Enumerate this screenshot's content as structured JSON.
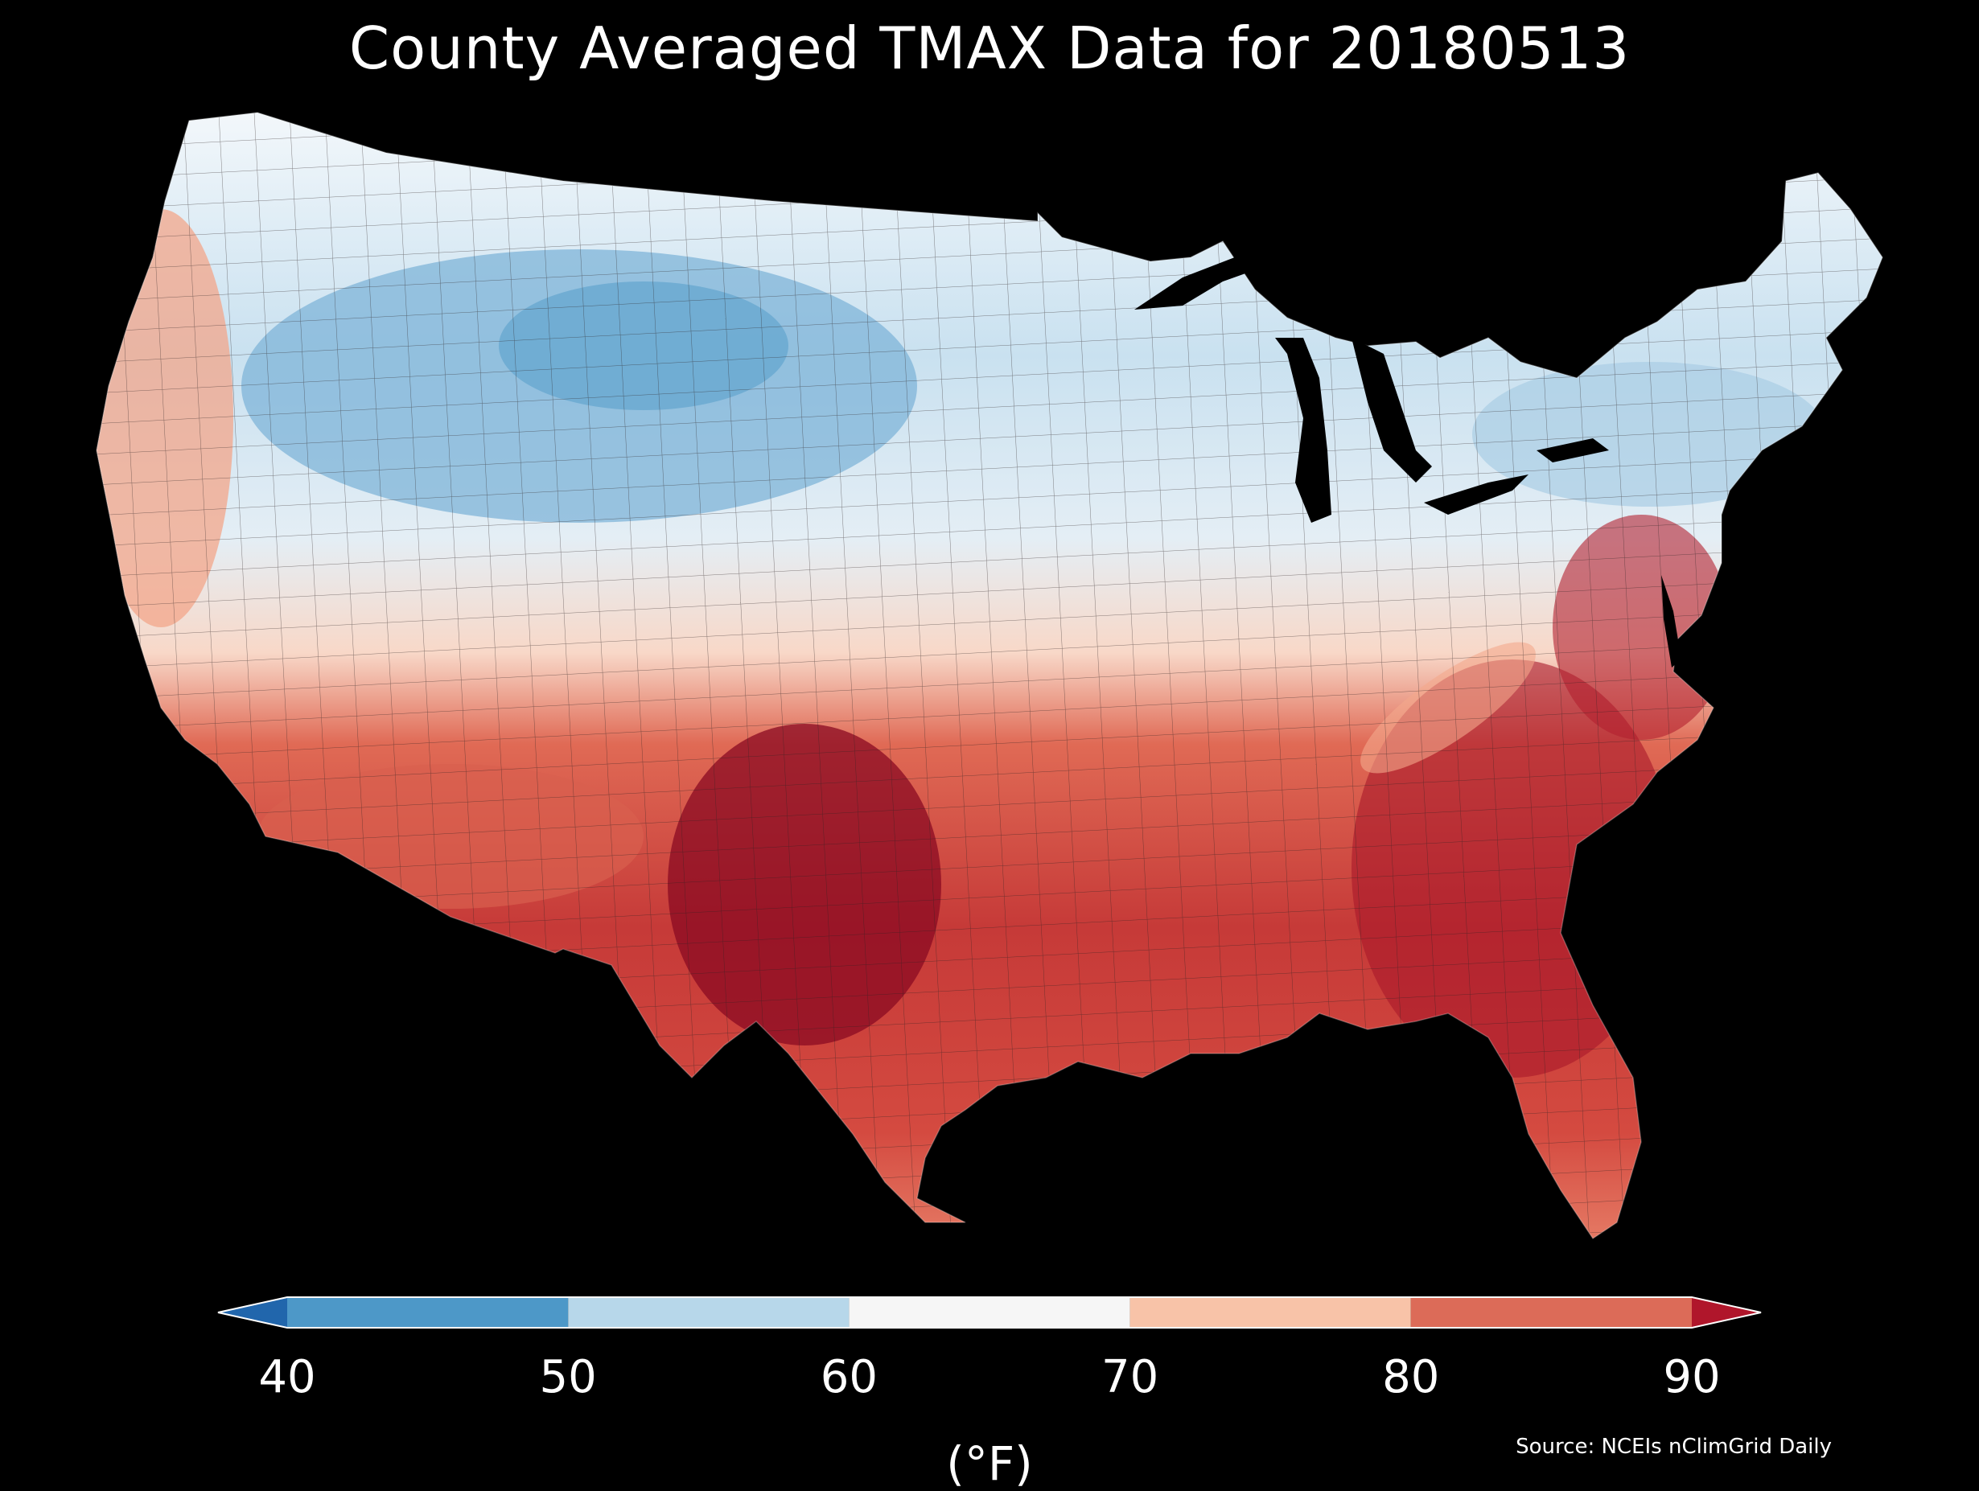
{
  "title": "County Averaged TMAX Data for 20180513",
  "colorbar": {
    "unit_label": "(°F)",
    "ticks": [
      "40",
      "50",
      "60",
      "70",
      "80",
      "90"
    ],
    "bins": [
      {
        "from": 40,
        "to": 50,
        "color": "#4d98c8"
      },
      {
        "from": 50,
        "to": 60,
        "color": "#b7d7ea"
      },
      {
        "from": 60,
        "to": 70,
        "color": "#f6f6f6"
      },
      {
        "from": 70,
        "to": 80,
        "color": "#f8c3a8"
      },
      {
        "from": 80,
        "to": 90,
        "color": "#dc6b58"
      }
    ],
    "under_color": "#2166ac",
    "over_color": "#b0162b"
  },
  "source": "Source: NCEIs nClimGrid Daily",
  "map": {
    "region": "contiguous-united-states",
    "background_color": "#000000",
    "county_border_color": "#3a2a2a"
  }
}
